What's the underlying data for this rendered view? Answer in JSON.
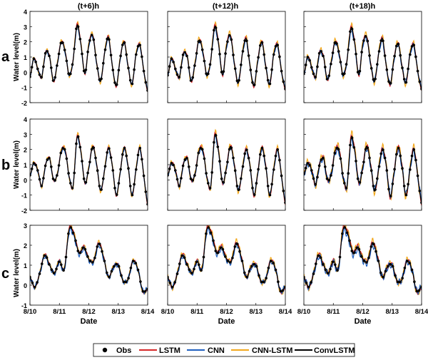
{
  "figure": {
    "column_titles": [
      "(t+6)h",
      "(t+12)h",
      "(t+18)h"
    ],
    "row_labels": [
      "a",
      "b",
      "c"
    ],
    "ylabel": "Water level(m)",
    "xlabel": "Date",
    "legend": [
      {
        "name": "Obs",
        "color": "#000000",
        "kind": "marker"
      },
      {
        "name": "LSTM",
        "color": "#d62728",
        "kind": "line"
      },
      {
        "name": "CNN",
        "color": "#1f5fbf",
        "kind": "line"
      },
      {
        "name": "CNN-LSTM",
        "color": "#f2a81d",
        "kind": "line"
      },
      {
        "name": "ConvLSTM",
        "color": "#000000",
        "kind": "line"
      }
    ]
  },
  "chart_data": [
    {
      "type": "line",
      "row": "a",
      "horizon": "(t+6)h",
      "ylim": [
        -2,
        4
      ],
      "yticks": [
        "-2",
        "-1",
        "0",
        "1",
        "2",
        "3",
        "4"
      ],
      "xlabel": "",
      "ylabel": "Water level(m)",
      "obs": [
        -0.3,
        0.9,
        0.2,
        -0.3,
        1.3,
        1.0,
        -0.6,
        0.6,
        2.0,
        1.3,
        -0.2,
        0.8,
        3.1,
        1.8,
        -0.1,
        1.8,
        2.4,
        0.6,
        -0.6,
        1.2,
        2.3,
        0.4,
        -0.9,
        0.9,
        2.0,
        0.4,
        -0.8,
        1.1,
        1.8,
        0.1,
        -1.2
      ],
      "series": [
        {
          "name": "LSTM",
          "offset": 0.08
        },
        {
          "name": "CNN",
          "offset": -0.12
        },
        {
          "name": "CNN-LSTM",
          "offset": 0.15
        },
        {
          "name": "ConvLSTM",
          "offset": 0.0
        }
      ]
    },
    {
      "type": "line",
      "row": "a",
      "horizon": "(t+12)h",
      "ylim": [
        -2,
        4
      ],
      "yticks": [],
      "xlabel": "",
      "ylabel": "",
      "obs": [
        -0.2,
        0.9,
        0.2,
        -0.3,
        1.2,
        1.0,
        -0.6,
        0.6,
        2.1,
        1.3,
        -0.2,
        0.8,
        3.0,
        1.8,
        -0.2,
        1.7,
        2.4,
        0.6,
        -0.7,
        1.1,
        2.2,
        0.4,
        -0.9,
        0.8,
        2.0,
        0.4,
        -0.8,
        1.1,
        1.8,
        0.1,
        -1.1
      ],
      "series": [
        {
          "name": "LSTM",
          "offset": 0.1
        },
        {
          "name": "CNN",
          "offset": -0.15
        },
        {
          "name": "CNN-LSTM",
          "offset": 0.2
        },
        {
          "name": "ConvLSTM",
          "offset": 0.02
        }
      ]
    },
    {
      "type": "line",
      "row": "a",
      "horizon": "(t+18)h",
      "ylim": [
        -2,
        4
      ],
      "yticks": [],
      "xlabel": "",
      "ylabel": "",
      "obs": [
        -0.1,
        1.0,
        0.3,
        -0.3,
        1.3,
        1.0,
        -0.5,
        0.7,
        2.0,
        1.2,
        -0.2,
        0.8,
        2.9,
        1.8,
        -0.2,
        1.8,
        2.3,
        0.6,
        -0.6,
        1.1,
        2.2,
        0.4,
        -0.8,
        0.9,
        1.9,
        0.4,
        -0.7,
        1.1,
        1.8,
        0.1,
        -1.1
      ],
      "series": [
        {
          "name": "LSTM",
          "offset": 0.1
        },
        {
          "name": "CNN",
          "offset": -0.18
        },
        {
          "name": "CNN-LSTM",
          "offset": 0.22
        },
        {
          "name": "ConvLSTM",
          "offset": 0.03
        }
      ]
    },
    {
      "type": "line",
      "row": "b",
      "horizon": "(t+6)h",
      "ylim": [
        -2,
        4
      ],
      "yticks": [
        "-2",
        "-1",
        "0",
        "1",
        "2",
        "3",
        "4"
      ],
      "xlabel": "",
      "ylabel": "Water level(m)",
      "obs": [
        0.3,
        1.1,
        0.6,
        -0.4,
        1.0,
        1.4,
        0.0,
        0.4,
        1.9,
        1.9,
        0.2,
        -0.4,
        2.8,
        1.8,
        -0.2,
        0.8,
        2.2,
        1.0,
        -0.7,
        0.6,
        2.1,
        0.9,
        -1.0,
        0.5,
        2.1,
        0.9,
        -1.0,
        0.6,
        2.1,
        0.3,
        -1.6
      ],
      "series": [
        {
          "name": "LSTM",
          "offset": 0.08
        },
        {
          "name": "CNN",
          "offset": -0.12
        },
        {
          "name": "CNN-LSTM",
          "offset": 0.15
        },
        {
          "name": "ConvLSTM",
          "offset": 0.0
        }
      ]
    },
    {
      "type": "line",
      "row": "b",
      "horizon": "(t+12)h",
      "ylim": [
        -2,
        4
      ],
      "yticks": [],
      "xlabel": "",
      "ylabel": "",
      "obs": [
        0.3,
        1.1,
        0.6,
        -0.4,
        1.0,
        1.4,
        0.0,
        0.4,
        1.9,
        1.9,
        0.2,
        -0.4,
        2.9,
        1.8,
        -0.2,
        0.8,
        2.2,
        1.0,
        -0.7,
        0.6,
        2.0,
        0.9,
        -1.0,
        0.5,
        2.1,
        0.9,
        -1.0,
        0.6,
        2.0,
        0.3,
        -1.5
      ],
      "series": [
        {
          "name": "LSTM",
          "offset": 0.12
        },
        {
          "name": "CNN",
          "offset": -0.15
        },
        {
          "name": "CNN-LSTM",
          "offset": 0.2
        },
        {
          "name": "ConvLSTM",
          "offset": 0.02
        }
      ]
    },
    {
      "type": "line",
      "row": "b",
      "horizon": "(t+18)h",
      "ylim": [
        -2,
        4
      ],
      "yticks": [],
      "xlabel": "",
      "ylabel": "",
      "obs": [
        0.4,
        1.1,
        0.6,
        -0.3,
        1.0,
        1.4,
        0.0,
        0.4,
        1.9,
        1.9,
        0.2,
        -0.4,
        2.7,
        1.8,
        -0.2,
        0.8,
        2.2,
        1.0,
        -0.7,
        0.6,
        2.0,
        0.9,
        -1.1,
        0.5,
        2.1,
        0.9,
        -1.0,
        0.6,
        2.0,
        0.3,
        -1.5
      ],
      "series": [
        {
          "name": "LSTM",
          "offset": 0.15
        },
        {
          "name": "CNN",
          "offset": -0.25
        },
        {
          "name": "CNN-LSTM",
          "offset": 0.3
        },
        {
          "name": "ConvLSTM",
          "offset": 0.05
        }
      ]
    },
    {
      "type": "line",
      "row": "c",
      "horizon": "(t+6)h",
      "ylim": [
        -1,
        3
      ],
      "yticks": [
        "-1",
        "0",
        "1",
        "2",
        "3"
      ],
      "xlabel": "Date",
      "ylabel": "Water level(m)",
      "obs": [
        0.4,
        -0.1,
        0.6,
        1.5,
        1.0,
        0.6,
        1.2,
        0.8,
        2.8,
        2.5,
        1.6,
        1.9,
        1.3,
        1.2,
        2.1,
        1.4,
        0.4,
        0.9,
        1.0,
        0.2,
        0.3,
        1.2,
        0.8,
        -0.3,
        -0.2
      ],
      "series": [
        {
          "name": "LSTM",
          "offset": 0.08
        },
        {
          "name": "CNN",
          "offset": -0.15
        },
        {
          "name": "CNN-LSTM",
          "offset": 0.12
        },
        {
          "name": "ConvLSTM",
          "offset": 0.0
        }
      ]
    },
    {
      "type": "line",
      "row": "c",
      "horizon": "(t+12)h",
      "ylim": [
        -1,
        3
      ],
      "yticks": [],
      "xlabel": "Date",
      "ylabel": "",
      "obs": [
        0.4,
        -0.1,
        0.6,
        1.5,
        1.0,
        0.6,
        1.2,
        0.8,
        2.8,
        2.5,
        1.6,
        1.9,
        1.3,
        1.2,
        2.1,
        1.4,
        0.4,
        0.9,
        1.0,
        0.2,
        0.3,
        1.2,
        0.8,
        -0.3,
        -0.1
      ],
      "series": [
        {
          "name": "LSTM",
          "offset": 0.1
        },
        {
          "name": "CNN",
          "offset": -0.15
        },
        {
          "name": "CNN-LSTM",
          "offset": 0.18
        },
        {
          "name": "ConvLSTM",
          "offset": 0.02
        }
      ]
    },
    {
      "type": "line",
      "row": "c",
      "horizon": "(t+18)h",
      "ylim": [
        -1,
        3
      ],
      "yticks": [],
      "xlabel": "Date",
      "ylabel": "",
      "obs": [
        0.4,
        -0.1,
        0.6,
        1.5,
        1.0,
        0.6,
        1.2,
        0.8,
        2.8,
        2.5,
        1.6,
        1.9,
        1.3,
        1.2,
        2.1,
        1.4,
        0.4,
        0.9,
        1.0,
        0.2,
        0.3,
        1.2,
        0.8,
        -0.3,
        -0.1
      ],
      "series": [
        {
          "name": "LSTM",
          "offset": 0.12
        },
        {
          "name": "CNN",
          "offset": -0.2
        },
        {
          "name": "CNN-LSTM",
          "offset": 0.2
        },
        {
          "name": "ConvLSTM",
          "offset": 0.03
        }
      ]
    }
  ],
  "xticks": [
    "8/10",
    "8/11",
    "8/12",
    "8/13",
    "8/14"
  ]
}
